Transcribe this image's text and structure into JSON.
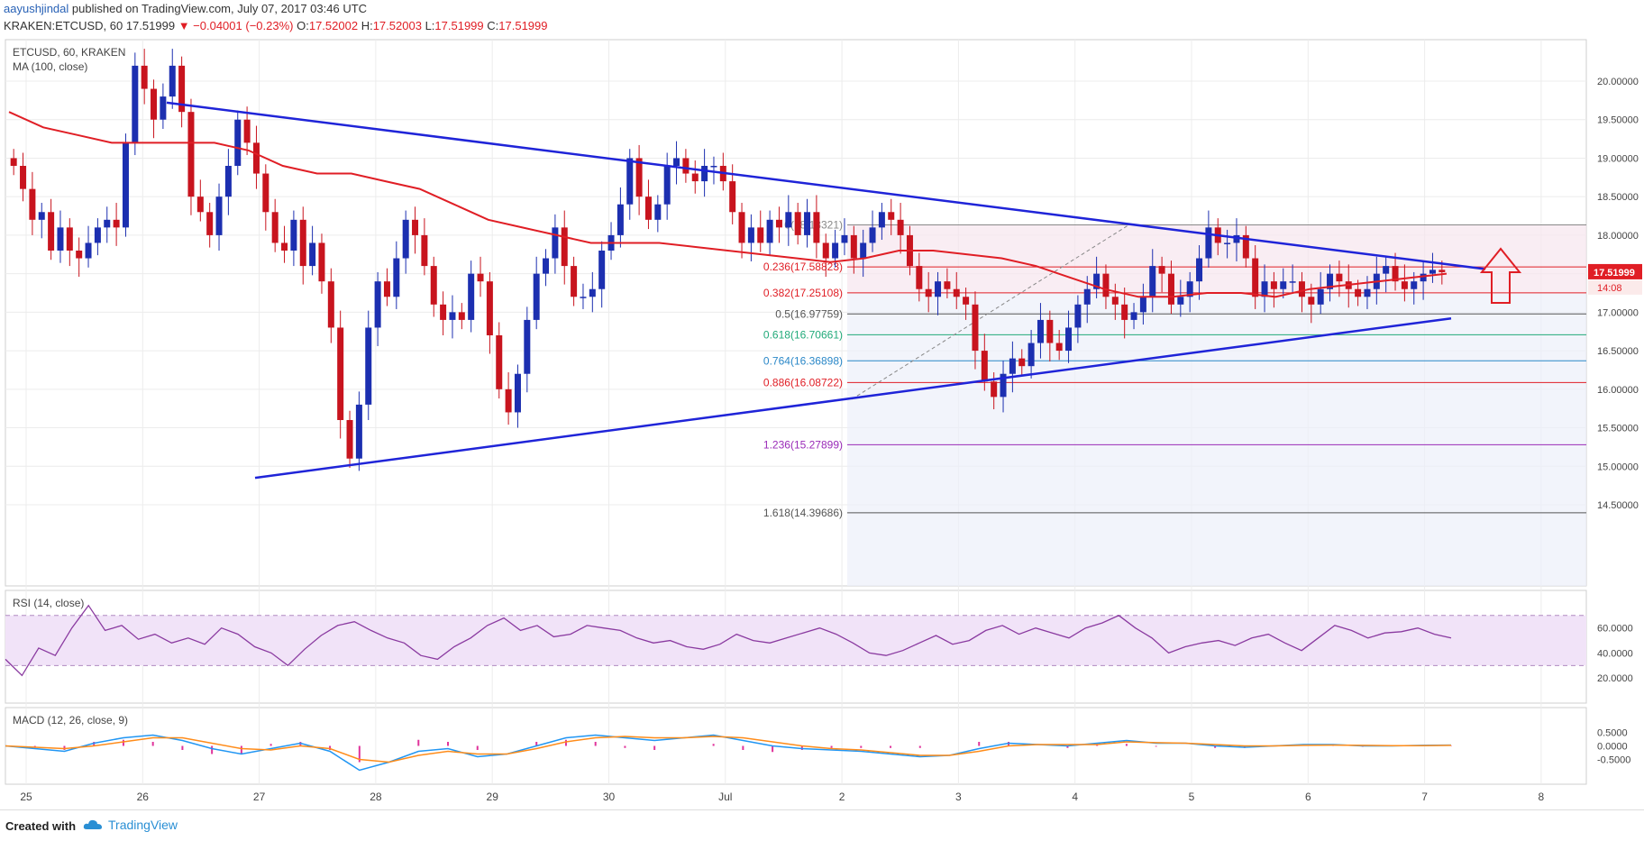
{
  "header": {
    "author": "aayushjindal",
    "published_text": "published on TradingView.com, July 07, 2017 03:46 UTC",
    "symbol_line": "KRAKEN:ETCUSD, 60",
    "price": "17.51999",
    "change": "▼ −0.04001 (−0.23%)",
    "ohlc": {
      "o_label": "O:",
      "o": "17.52002",
      "h_label": "H:",
      "h": "17.52003",
      "l_label": "L:",
      "l": "17.51999",
      "c_label": "C:",
      "c": "17.51999"
    }
  },
  "footer": {
    "created_with": "Created with",
    "brand": "TradingView"
  },
  "colors": {
    "up": "#1c2fb0",
    "down": "#c8141e",
    "ma": "#e01e25",
    "trend": "#1f24d8",
    "rsi": "#8a3aa0",
    "macd": "#2196f3",
    "signal": "#ff8c1a",
    "hist": "#e0339b",
    "fib_bg": "#f7e6ee",
    "proj_bg": "#eceffa"
  },
  "chart_data": {
    "type": "candlestick",
    "title": "ETCUSD, 60, KRAKEN",
    "indicator_label": "MA (100, close)",
    "x_tick_labels": [
      "25",
      "26",
      "27",
      "28",
      "29",
      "30",
      "Jul",
      "2",
      "3",
      "4",
      "5",
      "6",
      "7",
      "8"
    ],
    "y_axis": {
      "ticks": [
        "20.00000",
        "19.50000",
        "19.00000",
        "18.50000",
        "18.00000",
        "17.50000",
        "17.00000",
        "16.50000",
        "16.00000",
        "15.50000",
        "15.00000",
        "14.50000"
      ],
      "ylim": [
        14.4,
        20.5
      ]
    },
    "last_price_label": "17.51999",
    "countdown_label": "14:08",
    "close_series": [
      18.9,
      18.6,
      18.2,
      18.3,
      17.8,
      18.1,
      17.8,
      17.7,
      17.9,
      18.1,
      18.2,
      18.1,
      19.2,
      20.2,
      19.9,
      19.5,
      19.8,
      20.2,
      19.6,
      18.5,
      18.3,
      18.0,
      18.5,
      18.9,
      19.5,
      19.2,
      18.8,
      18.3,
      17.9,
      17.8,
      18.2,
      17.6,
      17.9,
      17.4,
      16.8,
      15.6,
      15.1,
      15.8,
      16.8,
      17.4,
      17.2,
      17.7,
      18.2,
      18.0,
      17.6,
      17.1,
      16.9,
      17.0,
      16.9,
      17.5,
      17.4,
      16.7,
      16.0,
      15.7,
      16.2,
      16.9,
      17.5,
      17.7,
      18.1,
      17.6,
      17.2,
      17.2,
      17.3,
      17.8,
      18.0,
      18.4,
      19.0,
      18.5,
      18.2,
      18.4,
      18.9,
      19.0,
      18.8,
      18.7,
      18.9,
      18.9,
      18.7,
      18.3,
      17.9,
      18.1,
      17.9,
      18.2,
      18.1,
      18.3,
      18.0,
      18.3,
      17.9,
      17.7,
      17.9,
      18.0,
      17.7,
      17.9,
      18.1,
      18.3,
      18.2,
      18.0,
      17.6,
      17.3,
      17.2,
      17.4,
      17.3,
      17.2,
      17.1,
      16.5,
      16.1,
      15.9,
      16.2,
      16.4,
      16.3,
      16.6,
      16.9,
      16.6,
      16.5,
      16.8,
      17.1,
      17.3,
      17.5,
      17.2,
      17.1,
      16.9,
      17.0,
      17.2,
      17.6,
      17.5,
      17.1,
      17.2,
      17.4,
      17.7,
      18.1,
      17.9,
      17.9,
      18.0,
      17.7,
      17.2,
      17.4,
      17.3,
      17.4,
      17.4,
      17.2,
      17.1,
      17.3,
      17.5,
      17.4,
      17.3,
      17.2,
      17.3,
      17.5,
      17.6,
      17.4,
      17.3,
      17.4,
      17.5,
      17.55,
      17.52
    ],
    "ma100_series": [
      19.6,
      19.4,
      19.3,
      19.2,
      19.2,
      19.2,
      19.2,
      19.1,
      18.9,
      18.8,
      18.8,
      18.7,
      18.6,
      18.4,
      18.2,
      18.1,
      18.0,
      17.9,
      17.9,
      17.9,
      17.85,
      17.8,
      17.75,
      17.7,
      17.65,
      17.7,
      17.8,
      17.8,
      17.75,
      17.7,
      17.6,
      17.45,
      17.3,
      17.2,
      17.2,
      17.25,
      17.25,
      17.2,
      17.3,
      17.35,
      17.4,
      17.45,
      17.5
    ],
    "ma_label_value": "17.50000",
    "fib_levels": [
      {
        "ratio": "0",
        "label": "0(18.13321)",
        "value": 18.13321,
        "color": "#888888"
      },
      {
        "ratio": "0.236",
        "label": "0.236(17.58823)",
        "value": 17.58823,
        "color": "#e01e25"
      },
      {
        "ratio": "0.382",
        "label": "0.382(17.25108)",
        "value": 17.25108,
        "color": "#e01e25"
      },
      {
        "ratio": "0.5",
        "label": "0.5(16.97759)",
        "value": 16.97759,
        "color": "#555555"
      },
      {
        "ratio": "0.618",
        "label": "0.618(16.70661)",
        "value": 16.70661,
        "color": "#22aa7a"
      },
      {
        "ratio": "0.764",
        "label": "0.764(16.36898)",
        "value": 16.36898,
        "color": "#2b88c8"
      },
      {
        "ratio": "0.886",
        "label": "0.886(16.08722)",
        "value": 16.08722,
        "color": "#e01e25"
      },
      {
        "ratio": "1.236",
        "label": "1.236(15.27899)",
        "value": 15.27899,
        "color": "#9a2bb8"
      },
      {
        "ratio": "1.618",
        "label": "1.618(14.39686)",
        "value": 14.39686,
        "color": "#555555"
      }
    ],
    "trendlines": [
      {
        "name": "upper",
        "from": [
          26.0,
          19.72
        ],
        "to": [
          7.25,
          17.56
        ]
      },
      {
        "name": "lower",
        "from": [
          26.8,
          14.85
        ],
        "to": [
          7.0,
          16.92
        ]
      }
    ],
    "rsi": {
      "label": "RSI (14, close)",
      "ticks": [
        "60.0000",
        "40.0000",
        "20.0000"
      ],
      "upper": 70,
      "lower": 30,
      "values": [
        35,
        22,
        44,
        38,
        60,
        78,
        58,
        62,
        51,
        55,
        48,
        52,
        47,
        60,
        55,
        45,
        40,
        30,
        43,
        54,
        62,
        65,
        58,
        52,
        48,
        38,
        35,
        45,
        52,
        62,
        68,
        58,
        62,
        53,
        55,
        62,
        60,
        58,
        52,
        48,
        50,
        45,
        43,
        47,
        55,
        50,
        48,
        52,
        56,
        60,
        55,
        48,
        40,
        38,
        42,
        48,
        54,
        47,
        50,
        58,
        62,
        55,
        60,
        56,
        52,
        60,
        64,
        70,
        60,
        52,
        40,
        45,
        48,
        50,
        46,
        52,
        55,
        48,
        42,
        52,
        62,
        58,
        52,
        56,
        57,
        60,
        55,
        52
      ]
    },
    "macd": {
      "label": "MACD (12, 26, close, 9)",
      "ticks": [
        "0.5000",
        "0.0000",
        "-0.5000"
      ],
      "macd_values": [
        0.0,
        -0.1,
        -0.2,
        0.1,
        0.3,
        0.4,
        0.2,
        -0.1,
        -0.3,
        -0.1,
        0.1,
        -0.2,
        -0.9,
        -0.6,
        -0.2,
        -0.1,
        -0.4,
        -0.3,
        0.0,
        0.3,
        0.4,
        0.3,
        0.2,
        0.3,
        0.4,
        0.2,
        0.0,
        -0.1,
        -0.15,
        -0.2,
        -0.3,
        -0.4,
        -0.35,
        -0.1,
        0.1,
        0.05,
        0.0,
        0.1,
        0.2,
        0.1,
        0.1,
        0.0,
        -0.05,
        0.0,
        0.05,
        0.05,
        0.0,
        0.0,
        0.02,
        0.03
      ],
      "signal_values": [
        0.0,
        -0.05,
        -0.1,
        0.0,
        0.15,
        0.3,
        0.3,
        0.1,
        -0.1,
        -0.15,
        0.0,
        -0.1,
        -0.5,
        -0.6,
        -0.35,
        -0.2,
        -0.3,
        -0.3,
        -0.1,
        0.15,
        0.3,
        0.35,
        0.3,
        0.3,
        0.35,
        0.3,
        0.15,
        0.0,
        -0.1,
        -0.15,
        -0.25,
        -0.35,
        -0.35,
        -0.2,
        0.0,
        0.05,
        0.05,
        0.05,
        0.15,
        0.12,
        0.1,
        0.05,
        0.0,
        0.0,
        0.02,
        0.03,
        0.02,
        0.01,
        0.01,
        0.02
      ]
    }
  }
}
